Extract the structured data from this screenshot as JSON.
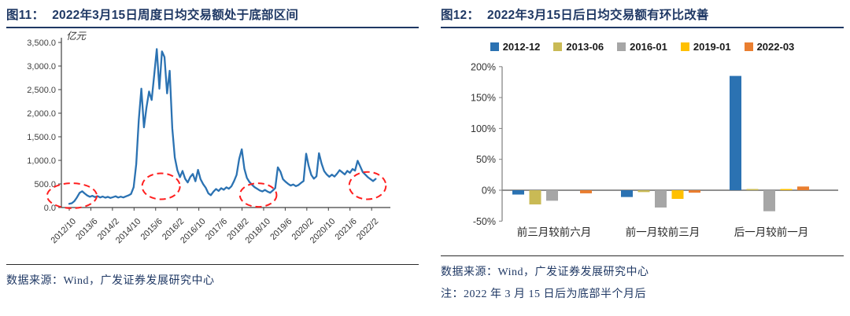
{
  "chart_data": [
    {
      "type": "line",
      "tag": "图11：",
      "title": "2022年3月15日周度日均交易额处于底部区间",
      "unit_label": "亿元",
      "source": "数据来源：Wind，广发证券发展研究中心",
      "line_color": "#2B72B2",
      "annotation_color": "#FF1F1F",
      "ylim": [
        0,
        3500
      ],
      "yticks": [
        "0.0",
        "500.0",
        "1,000.0",
        "1,500.0",
        "2,000.0",
        "2,500.0",
        "3,000.0",
        "3,500.0"
      ],
      "ytick_values": [
        0,
        500,
        1000,
        1500,
        2000,
        2500,
        3000,
        3500
      ],
      "xticklabels": [
        "2012/10",
        "2013/6",
        "2014/2",
        "2014/10",
        "2015/6",
        "2016/2",
        "2016/10",
        "2017/6",
        "2018/2",
        "2018/10",
        "2019/6",
        "2020/2",
        "2020/10",
        "2021/6",
        "2022/2"
      ],
      "x_months_per_tick": 8,
      "x_total_months": 113.5,
      "values": [
        78,
        92,
        135,
        215,
        310,
        345,
        298,
        255,
        228,
        248,
        222,
        242,
        213,
        233,
        208,
        226,
        204,
        220,
        238,
        212,
        230,
        214,
        236,
        256,
        288,
        430,
        920,
        1850,
        2520,
        1700,
        2120,
        2460,
        2280,
        2820,
        3360,
        2520,
        3310,
        3190,
        2420,
        2900,
        1680,
        1060,
        790,
        645,
        775,
        612,
        532,
        648,
        712,
        556,
        798,
        602,
        497,
        418,
        302,
        262,
        336,
        394,
        352,
        410,
        376,
        428,
        398,
        452,
        562,
        692,
        1030,
        1235,
        822,
        628,
        540,
        482,
        432,
        396,
        362,
        342,
        374,
        339,
        314,
        358,
        412,
        852,
        762,
        602,
        546,
        502,
        466,
        489,
        453,
        477,
        522,
        562,
        1142,
        882,
        692,
        612,
        662,
        1152,
        932,
        772,
        702,
        652,
        697,
        657,
        717,
        792,
        747,
        702,
        777,
        737,
        817,
        782,
        992,
        872,
        752,
        697,
        642,
        602,
        562,
        607
      ],
      "highlight_ellipses": [
        {
          "month": 1,
          "value": 250,
          "rx_months": 9.2,
          "ry_value": 265
        },
        {
          "month": 34,
          "value": 450,
          "rx_months": 7.0,
          "ry_value": 275
        },
        {
          "month": 70,
          "value": 265,
          "rx_months": 6.8,
          "ry_value": 250
        },
        {
          "month": 110.5,
          "value": 465,
          "rx_months": 6.8,
          "ry_value": 290
        }
      ]
    },
    {
      "type": "bar",
      "tag": "图12：",
      "title": "2022年3月15日后日均交易额有环比改善",
      "source": "数据来源：Wind，广发证券发展研究中心",
      "note": "注：2022 年 3 月 15 日后为底部半个月后",
      "categories": [
        "前三月较前六月",
        "前一月较前三月",
        "后一月较前一月"
      ],
      "series": [
        {
          "name": "2012-12",
          "color": "#2B72B2",
          "values": [
            -7,
            -11,
            185
          ]
        },
        {
          "name": "2013-06",
          "color": "#C9BA55",
          "values": [
            -23,
            -3,
            2
          ]
        },
        {
          "name": "2016-01",
          "color": "#A6A6A6",
          "values": [
            -17,
            -28,
            -34
          ]
        },
        {
          "name": "2019-01",
          "color": "#FFC000",
          "values": [
            0,
            -14,
            2
          ]
        },
        {
          "name": "2022-03",
          "color": "#E97E30",
          "values": [
            -5,
            -4,
            6
          ]
        }
      ],
      "ylim": [
        -50,
        200
      ],
      "yticks": [
        "-50%",
        "0%",
        "50%",
        "100%",
        "150%",
        "200%"
      ],
      "ytick_values": [
        -50,
        0,
        50,
        100,
        150,
        200
      ],
      "legend_position": "top"
    }
  ]
}
